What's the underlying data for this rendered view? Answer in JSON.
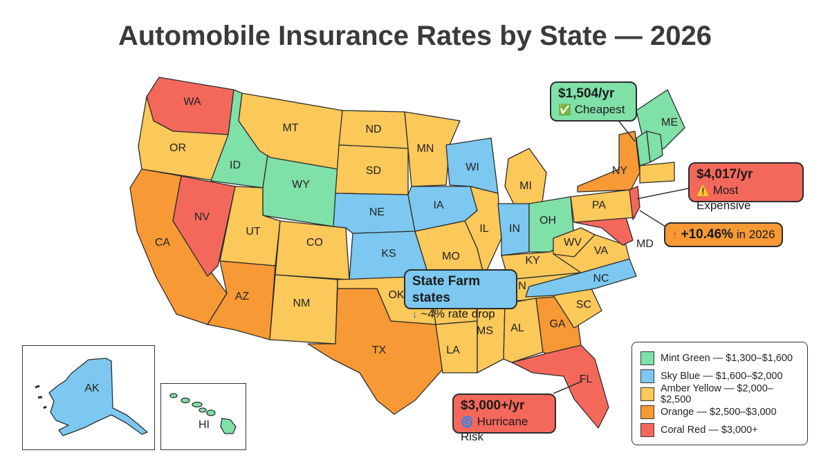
{
  "title": "Automobile Insurance Rates by State — 2026",
  "colors": {
    "mint": "#7fe0a8",
    "sky": "#7cc8f0",
    "amber": "#fbc85a",
    "orange": "#f79a35",
    "coral": "#f4685c"
  },
  "states": {
    "WA": {
      "label": "WA",
      "color": "coral"
    },
    "OR": {
      "label": "OR",
      "color": "amber"
    },
    "CA": {
      "label": "CA",
      "color": "orange"
    },
    "ID": {
      "label": "ID",
      "color": "mint"
    },
    "NV": {
      "label": "NV",
      "color": "coral"
    },
    "MT": {
      "label": "MT",
      "color": "amber"
    },
    "WY": {
      "label": "WY",
      "color": "mint"
    },
    "UT": {
      "label": "UT",
      "color": "amber"
    },
    "AZ": {
      "label": "AZ",
      "color": "orange"
    },
    "CO": {
      "label": "CO",
      "color": "amber"
    },
    "NM": {
      "label": "NM",
      "color": "amber"
    },
    "ND": {
      "label": "ND",
      "color": "amber"
    },
    "SD": {
      "label": "SD",
      "color": "amber"
    },
    "NE": {
      "label": "NE",
      "color": "sky"
    },
    "KS": {
      "label": "KS",
      "color": "sky"
    },
    "OK": {
      "label": "OK",
      "color": "amber"
    },
    "TX": {
      "label": "TX",
      "color": "orange"
    },
    "MN": {
      "label": "MN",
      "color": "amber"
    },
    "IA": {
      "label": "IA",
      "color": "sky"
    },
    "MO": {
      "label": "MO",
      "color": "amber"
    },
    "AR": {
      "label": "",
      "color": "amber"
    },
    "LA": {
      "label": "LA",
      "color": "amber"
    },
    "WI": {
      "label": "WI",
      "color": "sky"
    },
    "IL": {
      "label": "IL",
      "color": "amber"
    },
    "MI": {
      "label": "MI",
      "color": "amber"
    },
    "IN": {
      "label": "IN",
      "color": "sky"
    },
    "OH": {
      "label": "OH",
      "color": "mint"
    },
    "KY": {
      "label": "KY",
      "color": "amber"
    },
    "TN": {
      "label": "N",
      "color": "amber"
    },
    "MS": {
      "label": "MS",
      "color": "amber"
    },
    "AL": {
      "label": "AL",
      "color": "amber"
    },
    "GA": {
      "label": "GA",
      "color": "orange"
    },
    "FL": {
      "label": "FL",
      "color": "coral"
    },
    "SC": {
      "label": "SC",
      "color": "amber"
    },
    "NC": {
      "label": "NC",
      "color": "sky"
    },
    "VA": {
      "label": "VA",
      "color": "amber"
    },
    "WV": {
      "label": "WV",
      "color": "amber"
    },
    "MD": {
      "label": "MD",
      "color": "coral"
    },
    "PA": {
      "label": "PA",
      "color": "amber"
    },
    "NY": {
      "label": "NY",
      "color": "orange"
    },
    "NJ": {
      "label": "",
      "color": "coral"
    },
    "ME": {
      "label": "ME",
      "color": "mint"
    },
    "NH": {
      "label": "",
      "color": "mint"
    },
    "VT": {
      "label": "",
      "color": "mint"
    },
    "NE_small": {
      "label": "",
      "color": "amber"
    },
    "AK": {
      "label": "AK",
      "color": "sky"
    },
    "HI": {
      "label": "HI",
      "color": "mint"
    }
  },
  "callouts": {
    "cheapest": {
      "value": "$1,504/yr",
      "icon": "✅",
      "text": "Cheapest",
      "color": "mint"
    },
    "expensive": {
      "value": "$4,017/yr",
      "icon": "⚠️",
      "text": "Most Expensive",
      "color": "coral"
    },
    "increase": {
      "icon": "↑",
      "value": "+10.46%",
      "text": "in 2026",
      "color": "orange"
    },
    "md_label": "MD",
    "state_farm": {
      "value": "State Farm states",
      "icon": "↓",
      "text": "~4% rate drop",
      "color": "sky"
    },
    "hurricane": {
      "value": "$3,000+/yr",
      "icon": "🌀",
      "text": "Hurricane Risk",
      "color": "coral"
    }
  },
  "legend": [
    {
      "label": "Mint Green — $1,300–$1,600",
      "color": "mint"
    },
    {
      "label": "Sky Blue — $1,600–$2,000",
      "color": "sky"
    },
    {
      "label": "Amber Yellow — $2,000–$2,500",
      "color": "amber"
    },
    {
      "label": "Orange — $2,500–$3,000",
      "color": "orange"
    },
    {
      "label": "Coral Red — $3,000+",
      "color": "coral"
    }
  ]
}
